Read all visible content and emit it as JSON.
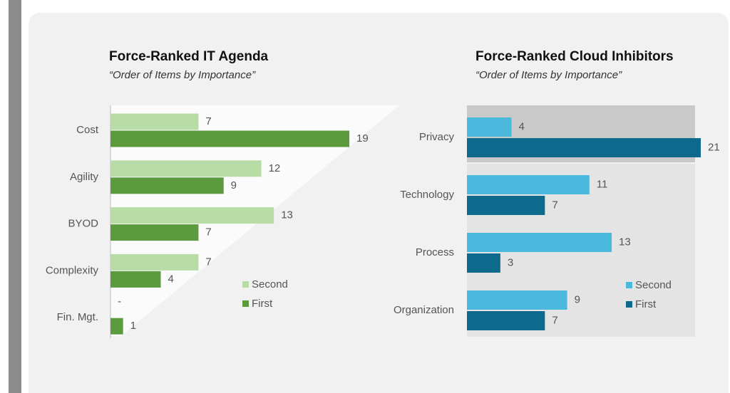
{
  "chart_data": [
    {
      "type": "bar",
      "title": "Force-Ranked IT Agenda",
      "subtitle": "“Order of Items by Importance”",
      "categories": [
        "Cost",
        "Agility",
        "BYOD",
        "Complexity",
        "Fin. Mgt."
      ],
      "series": [
        {
          "name": "Second",
          "color": "#b7dca6",
          "values": [
            7,
            12,
            13,
            7,
            null
          ],
          "value_labels": [
            "7",
            "12",
            "13",
            "7",
            "-"
          ]
        },
        {
          "name": "First",
          "color": "#5b9b3d",
          "values": [
            19,
            9,
            7,
            4,
            1
          ]
        }
      ]
    },
    {
      "type": "bar",
      "title": "Force-Ranked Cloud Inhibitors",
      "subtitle": "“Order of Items by Importance”",
      "categories": [
        "Privacy",
        "Technology",
        "Process",
        "Organization"
      ],
      "series": [
        {
          "name": "Second",
          "color": "#4bb8dd",
          "values": [
            4,
            11,
            13,
            9
          ]
        },
        {
          "name": "First",
          "color": "#0e6a8c",
          "values": [
            21,
            7,
            3,
            7
          ]
        }
      ]
    }
  ]
}
